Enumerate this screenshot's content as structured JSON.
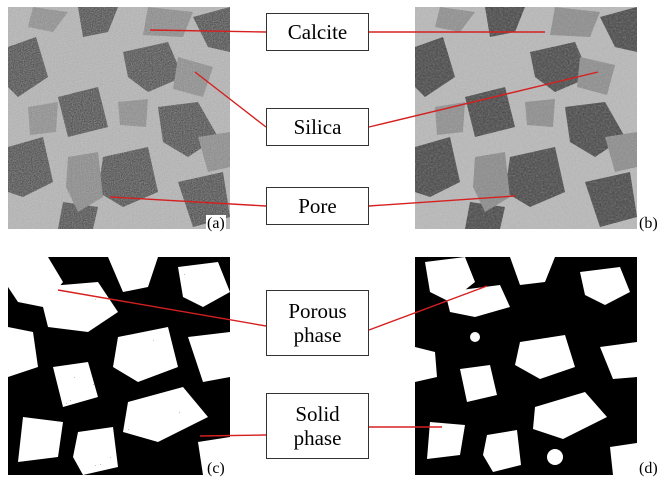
{
  "labels": {
    "calcite": "Calcite",
    "silica": "Silica",
    "pore": "Pore",
    "porous_phase": "Porous\nphase",
    "solid_phase": "Solid\nphase"
  },
  "panel_letters": {
    "a": "(a)",
    "b": "(b)",
    "c": "(c)",
    "d": "(d)"
  },
  "colors": {
    "leader_line": "#d62020",
    "box_border": "#333333",
    "pore_dark": "#3a3a3a",
    "silica_mid": "#8c8c8c",
    "calcite_light": "#bdbdbd",
    "binary_black": "#000000",
    "binary_white": "#ffffff"
  }
}
